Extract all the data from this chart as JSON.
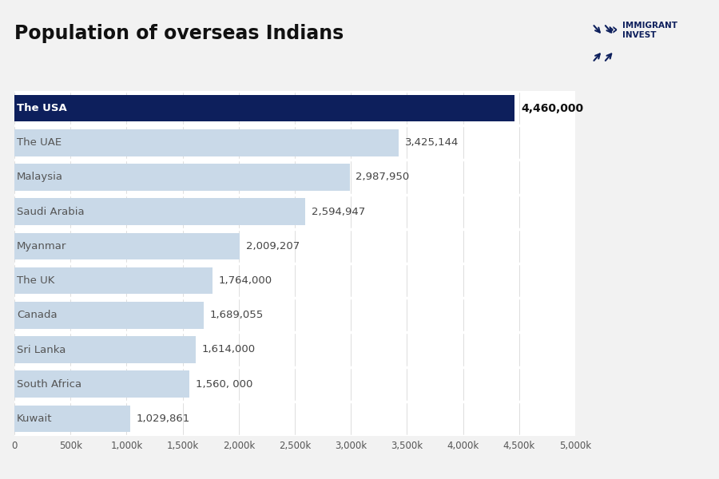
{
  "title": "Population of overseas Indians",
  "categories": [
    "Kuwait",
    "South Africa",
    "Sri Lanka",
    "Canada",
    "The UK",
    "Myanmar",
    "Saudi Arabia",
    "Malaysia",
    "The UAE",
    "The USA"
  ],
  "values": [
    1029861,
    1560000,
    1614000,
    1689055,
    1764000,
    2009207,
    2594947,
    2987950,
    3425144,
    4460000
  ],
  "labels": [
    "1,029,861",
    "1,560, 000",
    "1,614,000",
    "1,689,055",
    "1,764,000",
    "2,009,207",
    "2,594,947",
    "2,987,950",
    "3,425,144",
    "4,460,000"
  ],
  "bar_colors": [
    "#c9d9e8",
    "#c9d9e8",
    "#c9d9e8",
    "#c9d9e8",
    "#c9d9e8",
    "#c9d9e8",
    "#c9d9e8",
    "#c9d9e8",
    "#c9d9e8",
    "#0d1f5c"
  ],
  "text_colors": [
    "#555555",
    "#555555",
    "#555555",
    "#555555",
    "#555555",
    "#555555",
    "#555555",
    "#555555",
    "#555555",
    "#ffffff"
  ],
  "label_outside_colors": [
    "#333333",
    "#333333",
    "#333333",
    "#333333",
    "#333333",
    "#333333",
    "#333333",
    "#333333",
    "#333333",
    "#111111"
  ],
  "background_color": "#ffffff",
  "figure_bg": "#f2f2f2",
  "xlim": [
    0,
    5000000
  ],
  "xticks": [
    0,
    500000,
    1000000,
    1500000,
    2000000,
    2500000,
    3000000,
    3500000,
    4000000,
    4500000,
    5000000
  ],
  "xtick_labels": [
    "0",
    "500k",
    "1,000k",
    "1,500k",
    "2,000k",
    "2,500k",
    "3,000k",
    "3,500k",
    "4,000k",
    "4,500k",
    "5,000k"
  ],
  "title_fontsize": 17,
  "tick_fontsize": 8.5,
  "bar_label_fontsize": 9.5,
  "country_label_fontsize": 9.5,
  "logo_color": "#0d1f5c"
}
